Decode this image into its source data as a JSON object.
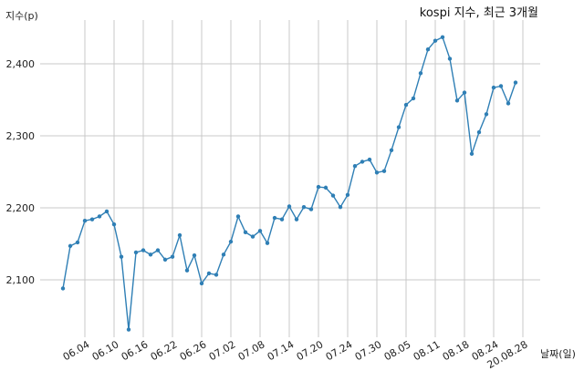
{
  "chart_data": {
    "type": "line",
    "title": "kospi 지수, 최근 3개월",
    "ylabel": "지수(p)",
    "xlabel": "날짜(일)",
    "ylim": [
      2020,
      2460
    ],
    "y_ticks": [
      2100,
      2200,
      2300,
      2400
    ],
    "y_tick_labels": [
      "2,100",
      "2,200",
      "2,300",
      "2,400"
    ],
    "grid": true,
    "x_tick_labels": [
      "06.04",
      "06.10",
      "06.16",
      "06.22",
      "06.26",
      "07.02",
      "07.08",
      "07.14",
      "07.20",
      "07.24",
      "07.30",
      "08.05",
      "08.11",
      "08.18",
      "08.24",
      "20.08.28"
    ],
    "x_tick_index": [
      3,
      7,
      11,
      15,
      19,
      23,
      27,
      31,
      35,
      39,
      43,
      47,
      51,
      55,
      59,
      63
    ],
    "series": [
      {
        "color": "#2f7fb5",
        "values": [
          2088,
          2147,
          2152,
          2182,
          2184,
          2188,
          2195,
          2177,
          2132,
          2031,
          2138,
          2141,
          2135,
          2141,
          2128,
          2132,
          2162,
          2113,
          2134,
          2095,
          2109,
          2107,
          2135,
          2153,
          2188,
          2166,
          2160,
          2168,
          2151,
          2186,
          2184,
          2202,
          2184,
          2201,
          2198,
          2229,
          2228,
          2217,
          2201,
          2218,
          2258,
          2264,
          2267,
          2249,
          2251,
          2280,
          2312,
          2343,
          2352,
          2387,
          2420,
          2432,
          2437,
          2407,
          2349,
          2360,
          2275,
          2305,
          2330,
          2367,
          2369,
          2345,
          2374
        ]
      }
    ]
  }
}
